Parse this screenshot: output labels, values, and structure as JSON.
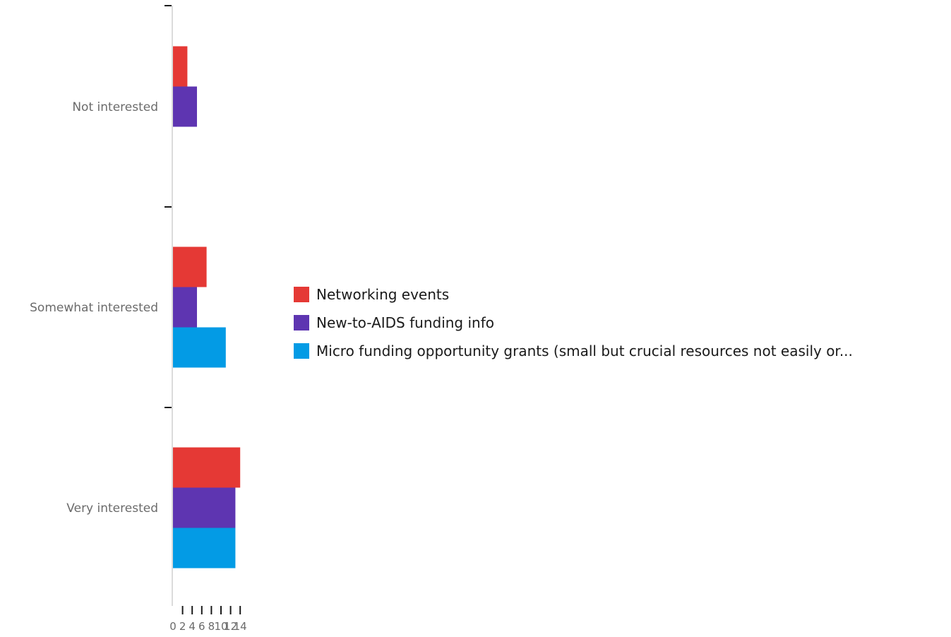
{
  "chart_data": {
    "type": "bar",
    "orientation": "horizontal",
    "categories": [
      "Not interested",
      "Somewhat interested",
      "Very interested"
    ],
    "series": [
      {
        "name": "Networking events",
        "color": "#e53935",
        "values": [
          3,
          7,
          14
        ]
      },
      {
        "name": "New-to-AIDS funding info",
        "color": "#5e35b1",
        "values": [
          5,
          5,
          13
        ]
      },
      {
        "name": "Micro funding opportunity grants (small but crucial resources not easily or...",
        "color": "#039be5",
        "values": [
          0,
          11,
          13
        ]
      }
    ],
    "xlim": [
      0,
      14
    ],
    "xticks": [
      "0",
      "2",
      "4",
      "6",
      "8",
      "10",
      "12",
      "14"
    ],
    "legend_position": "right",
    "grid": false,
    "title": "",
    "xlabel": "",
    "ylabel": ""
  }
}
